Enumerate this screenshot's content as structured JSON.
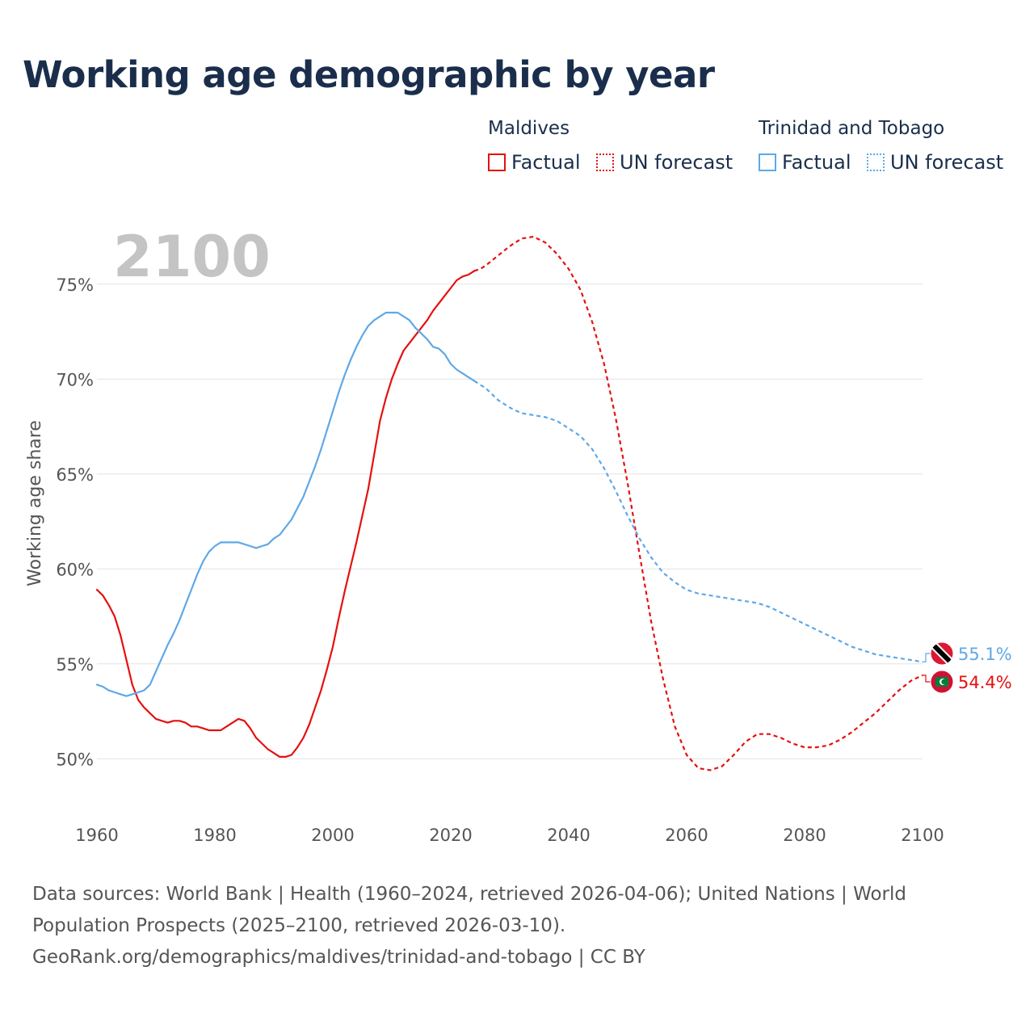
{
  "title": "Working age demographic by year",
  "legend": {
    "groups": [
      {
        "name": "Maldives",
        "color": "#e51010",
        "factual": "Factual",
        "forecast": "UN forecast"
      },
      {
        "name": "Trinidad and Tobago",
        "color": "#5fa8e6",
        "factual": "Factual",
        "forecast": "UN forecast"
      }
    ]
  },
  "footer": {
    "line1": "Data sources: World Bank | Health (1960–2024, retrieved 2026-04-06); United Nations | World",
    "line2": "Population Prospects (2025–2100, retrieved 2026-03-10).",
    "line3": "GeoRank.org/demographics/maldives/trinidad-and-tobago | CC BY"
  },
  "chart_data": {
    "type": "line",
    "year_watermark": "2100",
    "ylabel": "Working age share",
    "xlim": [
      1960,
      2100
    ],
    "ylim": [
      47.5,
      77.5
    ],
    "x_ticks": [
      "1960",
      "1980",
      "2000",
      "2020",
      "2040",
      "2060",
      "2080",
      "2100"
    ],
    "y_ticks": [
      {
        "value": 50,
        "label": "50%"
      },
      {
        "value": 55,
        "label": "55%"
      },
      {
        "value": 60,
        "label": "60%"
      },
      {
        "value": 65,
        "label": "65%"
      },
      {
        "value": 70,
        "label": "70%"
      },
      {
        "value": 75,
        "label": "75%"
      }
    ],
    "factual_end_year": 2024,
    "series": [
      {
        "name": "Maldives",
        "color": "#e51010",
        "end_label": "54.4%",
        "points": [
          [
            1960,
            58.9
          ],
          [
            1961,
            58.6
          ],
          [
            1962,
            58.1
          ],
          [
            1963,
            57.5
          ],
          [
            1964,
            56.5
          ],
          [
            1965,
            55.2
          ],
          [
            1966,
            53.9
          ],
          [
            1967,
            53.1
          ],
          [
            1968,
            52.7
          ],
          [
            1969,
            52.4
          ],
          [
            1970,
            52.1
          ],
          [
            1971,
            52.0
          ],
          [
            1972,
            51.9
          ],
          [
            1973,
            52.0
          ],
          [
            1974,
            52.0
          ],
          [
            1975,
            51.9
          ],
          [
            1976,
            51.7
          ],
          [
            1977,
            51.7
          ],
          [
            1978,
            51.6
          ],
          [
            1979,
            51.5
          ],
          [
            1980,
            51.5
          ],
          [
            1981,
            51.5
          ],
          [
            1982,
            51.7
          ],
          [
            1983,
            51.9
          ],
          [
            1984,
            52.1
          ],
          [
            1985,
            52.0
          ],
          [
            1986,
            51.6
          ],
          [
            1987,
            51.1
          ],
          [
            1988,
            50.8
          ],
          [
            1989,
            50.5
          ],
          [
            1990,
            50.3
          ],
          [
            1991,
            50.1
          ],
          [
            1992,
            50.1
          ],
          [
            1993,
            50.2
          ],
          [
            1994,
            50.6
          ],
          [
            1995,
            51.1
          ],
          [
            1996,
            51.8
          ],
          [
            1997,
            52.7
          ],
          [
            1998,
            53.6
          ],
          [
            1999,
            54.7
          ],
          [
            2000,
            55.9
          ],
          [
            2001,
            57.4
          ],
          [
            2002,
            58.8
          ],
          [
            2003,
            60.1
          ],
          [
            2004,
            61.4
          ],
          [
            2005,
            62.8
          ],
          [
            2006,
            64.2
          ],
          [
            2007,
            66.0
          ],
          [
            2008,
            67.8
          ],
          [
            2009,
            69.0
          ],
          [
            2010,
            70.0
          ],
          [
            2011,
            70.8
          ],
          [
            2012,
            71.5
          ],
          [
            2013,
            71.9
          ],
          [
            2014,
            72.3
          ],
          [
            2015,
            72.7
          ],
          [
            2016,
            73.1
          ],
          [
            2017,
            73.6
          ],
          [
            2018,
            74.0
          ],
          [
            2019,
            74.4
          ],
          [
            2020,
            74.8
          ],
          [
            2021,
            75.2
          ],
          [
            2022,
            75.4
          ],
          [
            2023,
            75.5
          ],
          [
            2024,
            75.7
          ],
          [
            2025,
            75.8
          ],
          [
            2026,
            76.0
          ],
          [
            2028,
            76.5
          ],
          [
            2030,
            77.0
          ],
          [
            2032,
            77.4
          ],
          [
            2034,
            77.5
          ],
          [
            2036,
            77.2
          ],
          [
            2038,
            76.6
          ],
          [
            2040,
            75.8
          ],
          [
            2042,
            74.7
          ],
          [
            2044,
            73.0
          ],
          [
            2046,
            70.8
          ],
          [
            2048,
            67.9
          ],
          [
            2050,
            64.5
          ],
          [
            2052,
            60.8
          ],
          [
            2054,
            57.2
          ],
          [
            2056,
            54.2
          ],
          [
            2058,
            51.7
          ],
          [
            2060,
            50.2
          ],
          [
            2062,
            49.5
          ],
          [
            2064,
            49.4
          ],
          [
            2066,
            49.6
          ],
          [
            2068,
            50.2
          ],
          [
            2070,
            50.9
          ],
          [
            2072,
            51.3
          ],
          [
            2074,
            51.3
          ],
          [
            2076,
            51.1
          ],
          [
            2078,
            50.8
          ],
          [
            2080,
            50.6
          ],
          [
            2082,
            50.6
          ],
          [
            2084,
            50.7
          ],
          [
            2086,
            51.0
          ],
          [
            2088,
            51.4
          ],
          [
            2090,
            51.9
          ],
          [
            2092,
            52.4
          ],
          [
            2094,
            53.0
          ],
          [
            2096,
            53.6
          ],
          [
            2098,
            54.1
          ],
          [
            2100,
            54.4
          ]
        ]
      },
      {
        "name": "Trinidad and Tobago",
        "color": "#5fa8e6",
        "end_label": "55.1%",
        "points": [
          [
            1960,
            53.9
          ],
          [
            1961,
            53.8
          ],
          [
            1962,
            53.6
          ],
          [
            1963,
            53.5
          ],
          [
            1964,
            53.4
          ],
          [
            1965,
            53.3
          ],
          [
            1966,
            53.4
          ],
          [
            1967,
            53.5
          ],
          [
            1968,
            53.6
          ],
          [
            1969,
            53.9
          ],
          [
            1970,
            54.6
          ],
          [
            1971,
            55.3
          ],
          [
            1972,
            56.0
          ],
          [
            1973,
            56.6
          ],
          [
            1974,
            57.3
          ],
          [
            1975,
            58.1
          ],
          [
            1976,
            58.9
          ],
          [
            1977,
            59.7
          ],
          [
            1978,
            60.4
          ],
          [
            1979,
            60.9
          ],
          [
            1980,
            61.2
          ],
          [
            1981,
            61.4
          ],
          [
            1982,
            61.4
          ],
          [
            1983,
            61.4
          ],
          [
            1984,
            61.4
          ],
          [
            1985,
            61.3
          ],
          [
            1986,
            61.2
          ],
          [
            1987,
            61.1
          ],
          [
            1988,
            61.2
          ],
          [
            1989,
            61.3
          ],
          [
            1990,
            61.6
          ],
          [
            1991,
            61.8
          ],
          [
            1992,
            62.2
          ],
          [
            1993,
            62.6
          ],
          [
            1994,
            63.2
          ],
          [
            1995,
            63.8
          ],
          [
            1996,
            64.6
          ],
          [
            1997,
            65.4
          ],
          [
            1998,
            66.3
          ],
          [
            1999,
            67.3
          ],
          [
            2000,
            68.3
          ],
          [
            2001,
            69.3
          ],
          [
            2002,
            70.2
          ],
          [
            2003,
            71.0
          ],
          [
            2004,
            71.7
          ],
          [
            2005,
            72.3
          ],
          [
            2006,
            72.8
          ],
          [
            2007,
            73.1
          ],
          [
            2008,
            73.3
          ],
          [
            2009,
            73.5
          ],
          [
            2010,
            73.5
          ],
          [
            2011,
            73.5
          ],
          [
            2012,
            73.3
          ],
          [
            2013,
            73.1
          ],
          [
            2014,
            72.7
          ],
          [
            2015,
            72.4
          ],
          [
            2016,
            72.1
          ],
          [
            2017,
            71.7
          ],
          [
            2018,
            71.6
          ],
          [
            2019,
            71.3
          ],
          [
            2020,
            70.8
          ],
          [
            2021,
            70.5
          ],
          [
            2022,
            70.3
          ],
          [
            2023,
            70.1
          ],
          [
            2024,
            69.9
          ],
          [
            2025,
            69.7
          ],
          [
            2026,
            69.5
          ],
          [
            2028,
            68.9
          ],
          [
            2030,
            68.5
          ],
          [
            2032,
            68.2
          ],
          [
            2034,
            68.1
          ],
          [
            2036,
            68.0
          ],
          [
            2038,
            67.8
          ],
          [
            2040,
            67.4
          ],
          [
            2042,
            67.0
          ],
          [
            2044,
            66.3
          ],
          [
            2046,
            65.3
          ],
          [
            2048,
            64.1
          ],
          [
            2050,
            62.8
          ],
          [
            2052,
            61.6
          ],
          [
            2054,
            60.6
          ],
          [
            2056,
            59.8
          ],
          [
            2058,
            59.3
          ],
          [
            2060,
            58.9
          ],
          [
            2062,
            58.7
          ],
          [
            2064,
            58.6
          ],
          [
            2066,
            58.5
          ],
          [
            2068,
            58.4
          ],
          [
            2070,
            58.3
          ],
          [
            2072,
            58.2
          ],
          [
            2074,
            58.0
          ],
          [
            2076,
            57.7
          ],
          [
            2078,
            57.4
          ],
          [
            2080,
            57.1
          ],
          [
            2082,
            56.8
          ],
          [
            2084,
            56.5
          ],
          [
            2086,
            56.2
          ],
          [
            2088,
            55.9
          ],
          [
            2090,
            55.7
          ],
          [
            2092,
            55.5
          ],
          [
            2094,
            55.4
          ],
          [
            2096,
            55.3
          ],
          [
            2098,
            55.2
          ],
          [
            2100,
            55.1
          ]
        ]
      }
    ]
  }
}
